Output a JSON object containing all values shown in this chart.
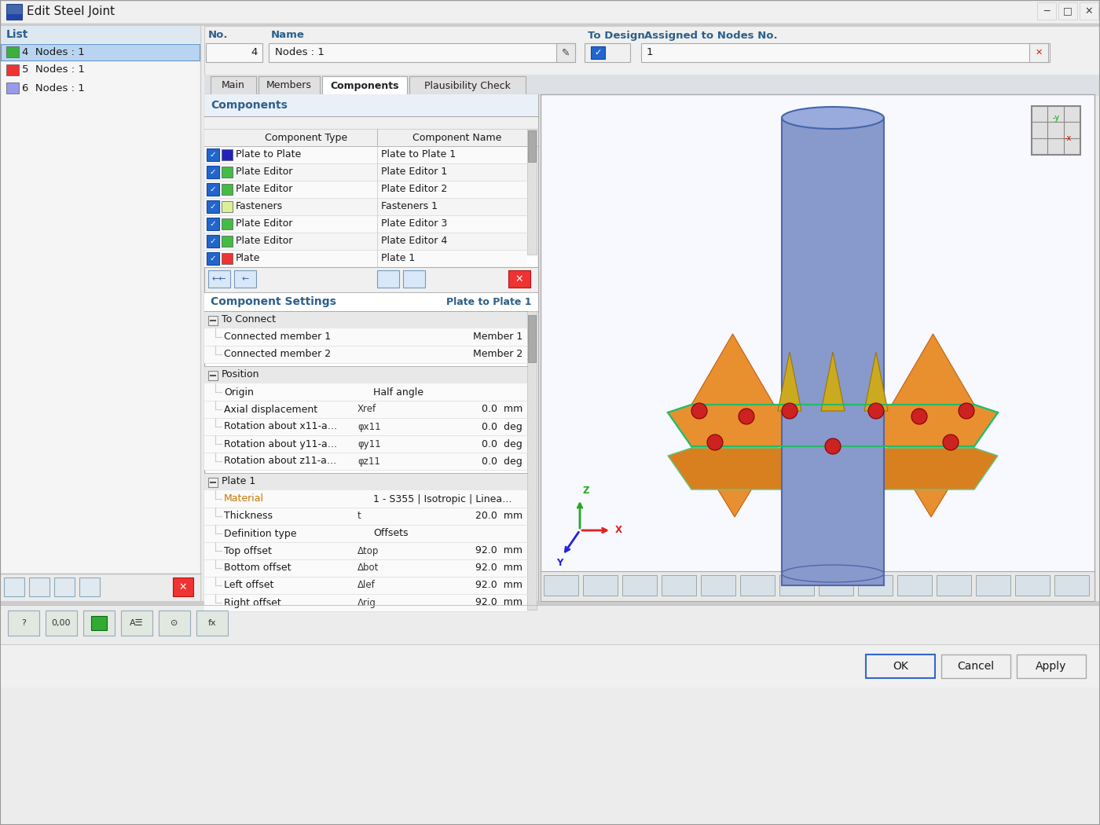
{
  "title_bar": "Edit Steel Joint",
  "list_items": [
    {
      "num": "4",
      "label": "Nodes : 1",
      "color": "#3daf3d",
      "selected": true
    },
    {
      "num": "5",
      "label": "Nodes : 1",
      "color": "#ee3333",
      "selected": false
    },
    {
      "num": "6",
      "label": "Nodes : 1",
      "color": "#9999ee",
      "selected": false
    }
  ],
  "no_value": "4",
  "name_value": "Nodes : 1",
  "tabs": [
    "Main",
    "Members",
    "Components",
    "Plausibility Check"
  ],
  "active_tab": "Components",
  "component_rows": [
    {
      "color": "#2222bb",
      "type": "Plate to Plate",
      "name": "Plate to Plate 1"
    },
    {
      "color": "#44bb44",
      "type": "Plate Editor",
      "name": "Plate Editor 1"
    },
    {
      "color": "#44bb44",
      "type": "Plate Editor",
      "name": "Plate Editor 2"
    },
    {
      "color": "#ddee99",
      "type": "Fasteners",
      "name": "Fasteners 1"
    },
    {
      "color": "#44bb44",
      "type": "Plate Editor",
      "name": "Plate Editor 3"
    },
    {
      "color": "#44bb44",
      "type": "Plate Editor",
      "name": "Plate Editor 4"
    },
    {
      "color": "#ee3333",
      "type": "Plate",
      "name": "Plate 1"
    }
  ],
  "comp_settings_right": "Plate to Plate 1",
  "settings_sections": [
    {
      "title": "To Connect",
      "rows": [
        {
          "label": "Connected member 1",
          "symbol": "",
          "value1": "",
          "value2": "Member 1"
        },
        {
          "label": "Connected member 2",
          "symbol": "",
          "value1": "",
          "value2": "Member 2"
        }
      ]
    },
    {
      "title": "Position",
      "rows": [
        {
          "label": "Origin",
          "symbol": "",
          "value1": "Half angle",
          "value2": ""
        },
        {
          "label": "Axial displacement",
          "symbol": "Xref",
          "value1": "",
          "value2": "0.0  mm"
        },
        {
          "label": "Rotation about x11-a…",
          "symbol": "φx11",
          "value1": "",
          "value2": "0.0  deg"
        },
        {
          "label": "Rotation about y11-a…",
          "symbol": "φy11",
          "value1": "",
          "value2": "0.0  deg"
        },
        {
          "label": "Rotation about z11-a…",
          "symbol": "φz11",
          "value1": "",
          "value2": "0.0  deg"
        }
      ]
    },
    {
      "title": "Plate 1",
      "rows": [
        {
          "label": "Material",
          "symbol": "",
          "value1": "1 - S355 | Isotropic | Linea…",
          "value2": ""
        },
        {
          "label": "Thickness",
          "symbol": "t",
          "value1": "",
          "value2": "20.0  mm"
        },
        {
          "label": "Definition type",
          "symbol": "",
          "value1": "Offsets",
          "value2": ""
        },
        {
          "label": "Top offset",
          "symbol": "Δtop",
          "value1": "",
          "value2": "92.0  mm"
        },
        {
          "label": "Bottom offset",
          "symbol": "Δbot",
          "value1": "",
          "value2": "92.0  mm"
        },
        {
          "label": "Left offset",
          "symbol": "Δlef",
          "value1": "",
          "value2": "92.0  mm"
        },
        {
          "label": "Right offset",
          "symbol": "Δrig",
          "value1": "",
          "value2": "92.0  mm"
        }
      ]
    }
  ],
  "bottom_buttons": [
    "OK",
    "Cancel",
    "Apply"
  ],
  "assigned_nodes": "1"
}
